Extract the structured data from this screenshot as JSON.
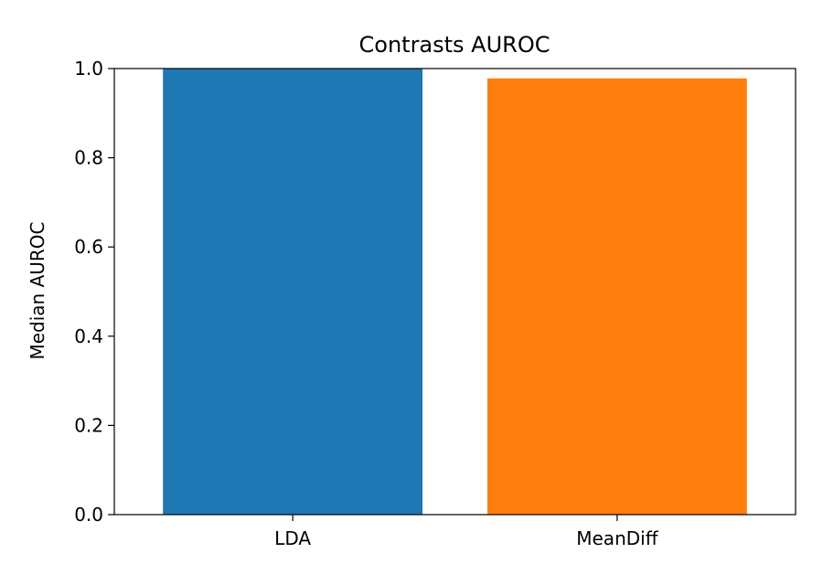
{
  "chart_data": {
    "type": "bar",
    "title": "Contrasts AUROC",
    "xlabel": "",
    "ylabel": "Median AUROC",
    "categories": [
      "LDA",
      "MeanDiff"
    ],
    "values": [
      1.0,
      0.978
    ],
    "colors": [
      "#1f77b4",
      "#ff7f0e"
    ],
    "ylim": [
      0,
      1.0
    ],
    "yticks": [
      "0.0",
      "0.2",
      "0.4",
      "0.6",
      "0.8",
      "1.0"
    ],
    "grid": false,
    "legend": "none"
  }
}
